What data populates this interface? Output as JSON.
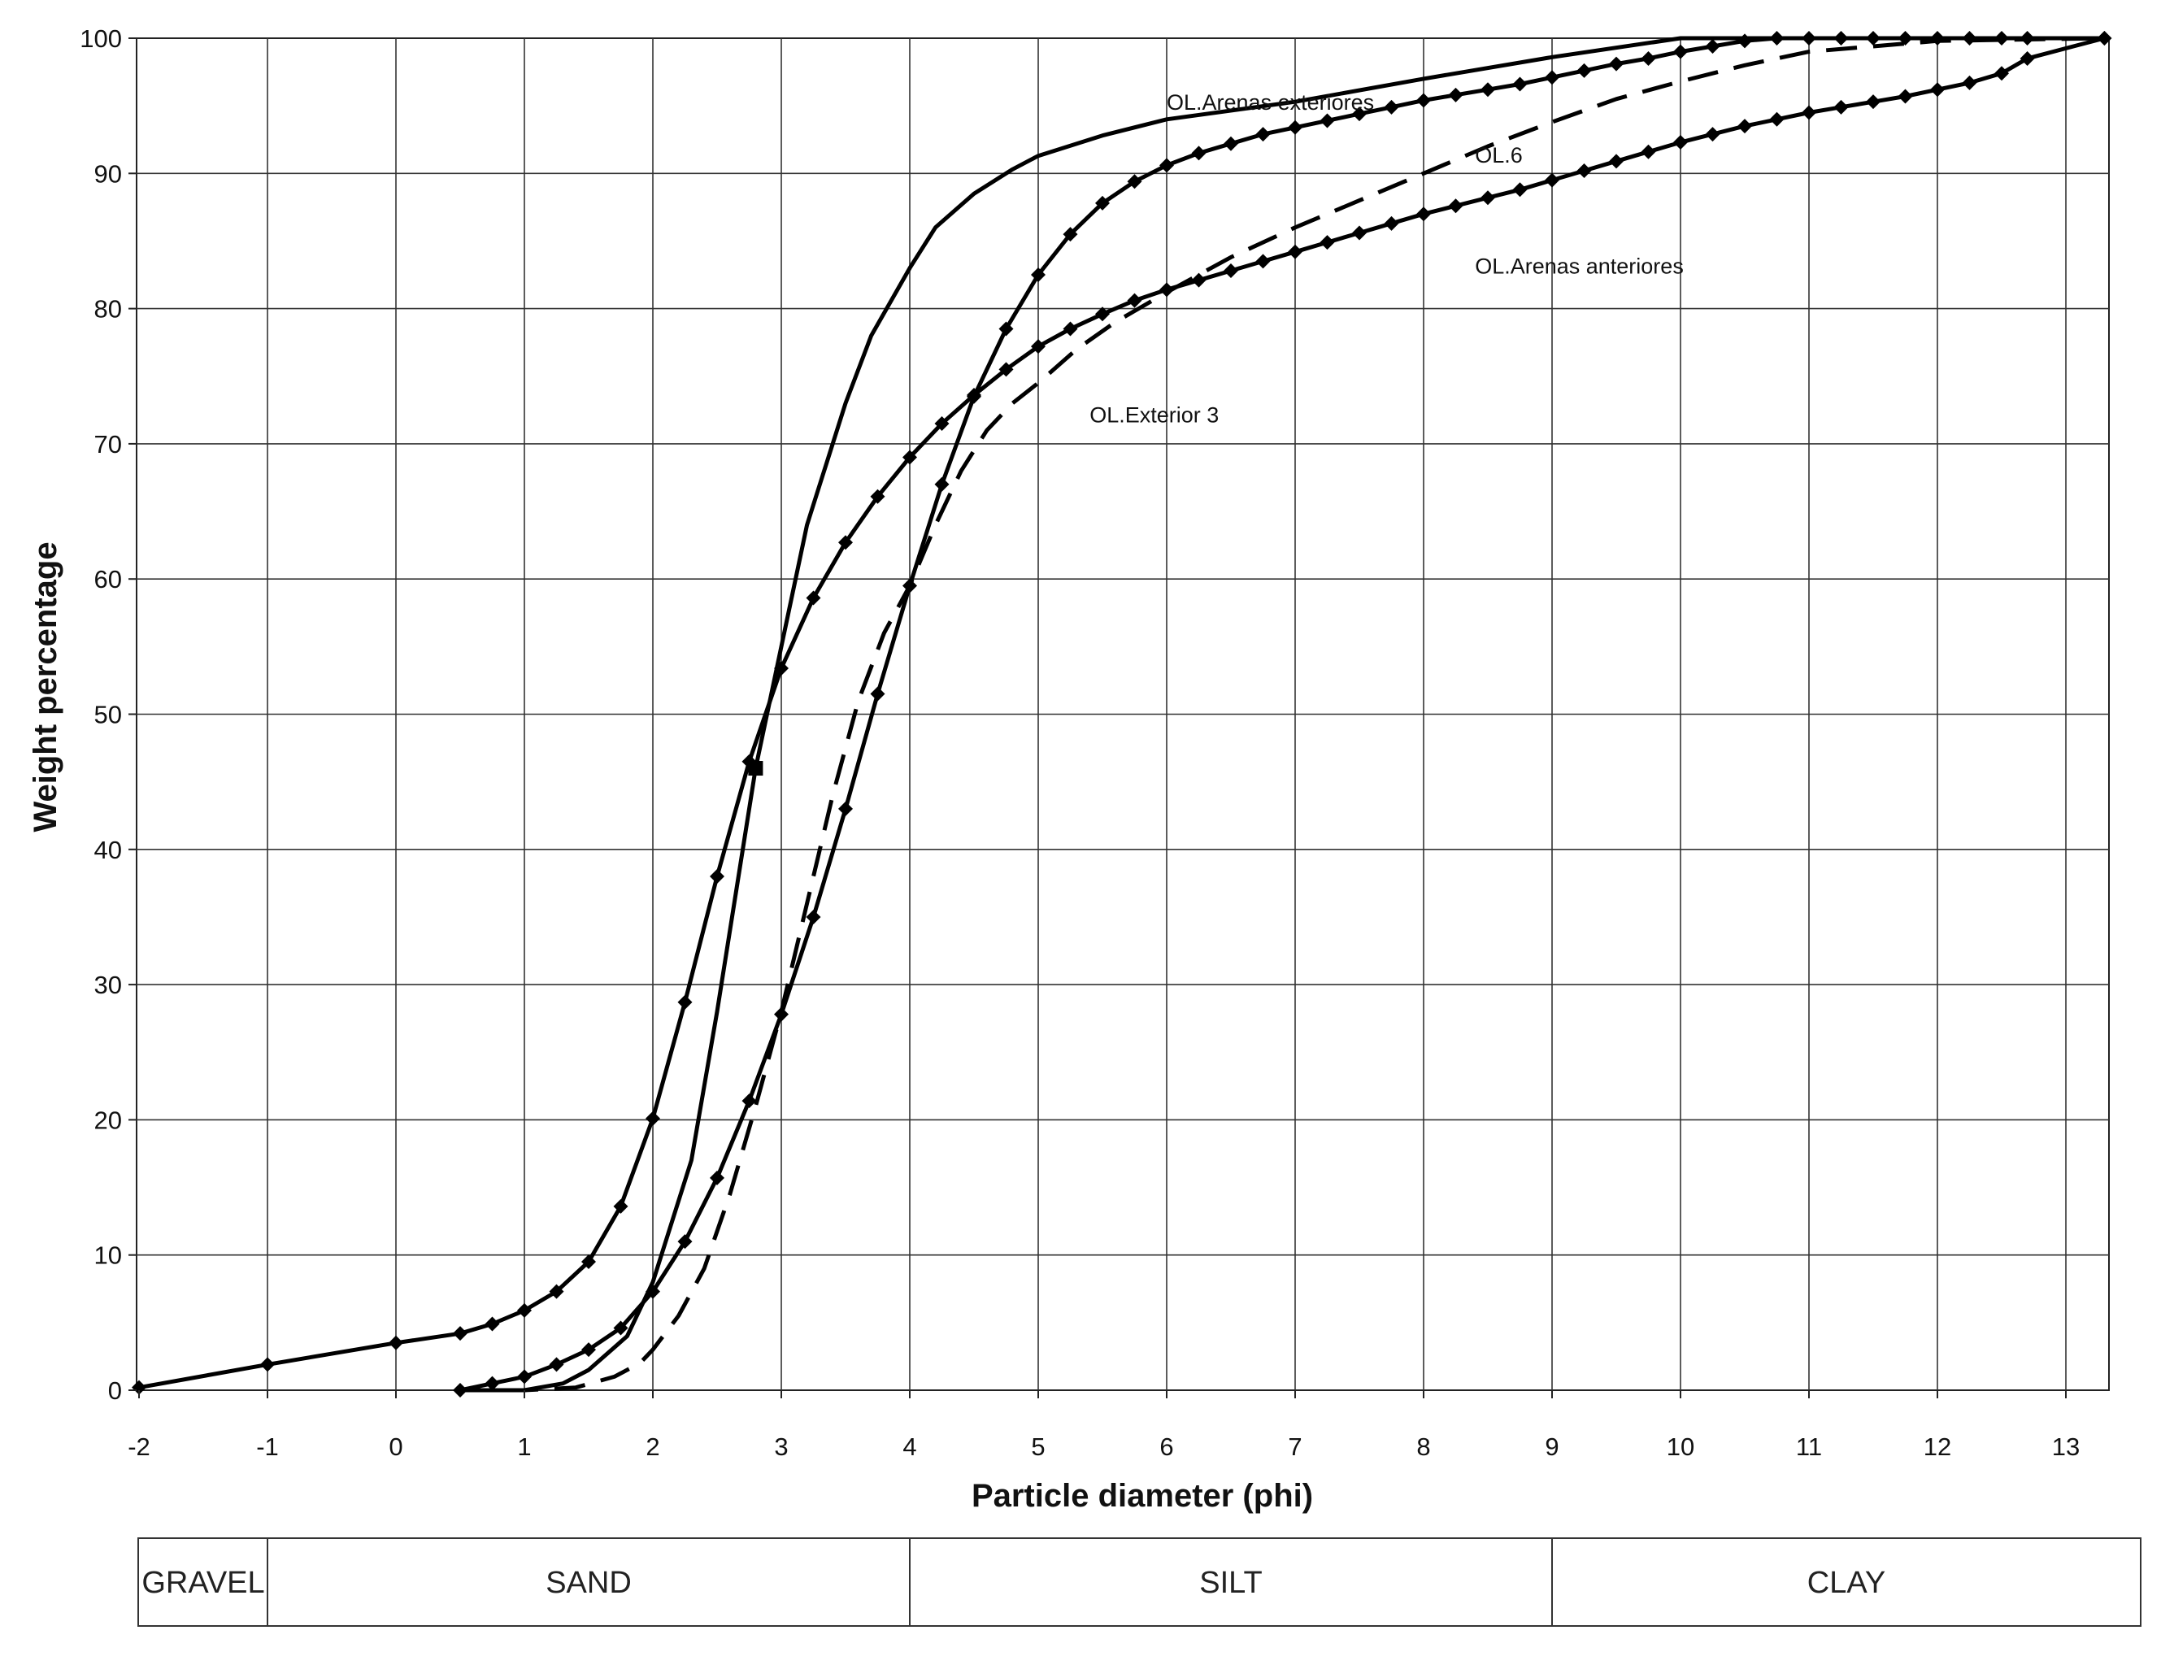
{
  "chart_data": {
    "type": "line",
    "title": "",
    "xlabel": "Particle diameter (phi)",
    "ylabel": "Weight percentage",
    "xlim": [
      -2,
      13.3
    ],
    "ylim": [
      0,
      100
    ],
    "x_ticks": [
      "-2",
      "-1",
      "0",
      "1",
      "2",
      "3",
      "4",
      "5",
      "6",
      "7",
      "8",
      "9",
      "10",
      "11",
      "12",
      "13"
    ],
    "y_ticks": [
      "0",
      "10",
      "20",
      "30",
      "40",
      "50",
      "60",
      "70",
      "80",
      "90",
      "100"
    ],
    "grid": true,
    "series": [
      {
        "name": "OL.Arenas exteriores",
        "style": "solid",
        "markers": false,
        "points": [
          [
            0.5,
            0
          ],
          [
            1,
            0
          ],
          [
            1.3,
            0.5
          ],
          [
            1.5,
            1.5
          ],
          [
            1.8,
            4
          ],
          [
            2,
            8
          ],
          [
            2.3,
            17
          ],
          [
            2.5,
            28
          ],
          [
            2.7,
            40
          ],
          [
            2.8,
            46
          ],
          [
            3,
            55
          ],
          [
            3.2,
            64
          ],
          [
            3.5,
            73
          ],
          [
            3.7,
            78
          ],
          [
            4,
            83
          ],
          [
            4.2,
            86
          ],
          [
            4.5,
            88.5
          ],
          [
            4.8,
            90.3
          ],
          [
            5,
            91.3
          ],
          [
            5.5,
            92.8
          ],
          [
            6,
            94
          ],
          [
            7,
            95.3
          ],
          [
            8,
            97
          ],
          [
            9,
            98.6
          ],
          [
            10,
            100
          ],
          [
            13.3,
            100
          ]
        ]
      },
      {
        "name": "OL.6",
        "style": "solid",
        "markers": true,
        "points": [
          [
            0.5,
            0
          ],
          [
            0.75,
            0.5
          ],
          [
            1,
            1
          ],
          [
            1.25,
            1.9
          ],
          [
            1.5,
            3
          ],
          [
            1.75,
            4.6
          ],
          [
            2,
            7.3
          ],
          [
            2.25,
            11
          ],
          [
            2.5,
            15.7
          ],
          [
            2.75,
            21.4
          ],
          [
            3,
            27.8
          ],
          [
            3.25,
            35
          ],
          [
            3.5,
            43
          ],
          [
            3.75,
            51.5
          ],
          [
            4,
            59.5
          ],
          [
            4.25,
            67
          ],
          [
            4.5,
            73.5
          ],
          [
            4.75,
            78.5
          ],
          [
            5,
            82.5
          ],
          [
            5.25,
            85.5
          ],
          [
            5.5,
            87.8
          ],
          [
            5.75,
            89.4
          ],
          [
            6,
            90.6
          ],
          [
            6.25,
            91.5
          ],
          [
            6.5,
            92.2
          ],
          [
            6.75,
            92.9
          ],
          [
            7,
            93.4
          ],
          [
            7.25,
            93.9
          ],
          [
            7.5,
            94.4
          ],
          [
            7.75,
            94.9
          ],
          [
            8,
            95.4
          ],
          [
            8.25,
            95.8
          ],
          [
            8.5,
            96.2
          ],
          [
            8.75,
            96.6
          ],
          [
            9,
            97.1
          ],
          [
            9.25,
            97.6
          ],
          [
            9.5,
            98.1
          ],
          [
            9.75,
            98.5
          ],
          [
            10,
            99
          ],
          [
            10.25,
            99.4
          ],
          [
            10.5,
            99.8
          ],
          [
            10.75,
            100
          ],
          [
            11,
            100
          ],
          [
            11.25,
            100
          ],
          [
            11.5,
            100
          ],
          [
            11.75,
            100
          ],
          [
            12,
            100
          ],
          [
            12.25,
            100
          ],
          [
            12.5,
            100
          ],
          [
            12.7,
            100
          ],
          [
            13.3,
            100
          ]
        ]
      },
      {
        "name": "OL.Arenas anteriores",
        "style": "solid",
        "markers": true,
        "points": [
          [
            -2,
            0.2
          ],
          [
            -1,
            1.9
          ],
          [
            0,
            3.5
          ],
          [
            0.5,
            4.2
          ],
          [
            0.75,
            4.9
          ],
          [
            1,
            5.9
          ],
          [
            1.25,
            7.3
          ],
          [
            1.5,
            9.5
          ],
          [
            1.75,
            13.6
          ],
          [
            2,
            20.1
          ],
          [
            2.25,
            28.7
          ],
          [
            2.5,
            38
          ],
          [
            2.75,
            46.5
          ],
          [
            3,
            53.4
          ],
          [
            3.25,
            58.6
          ],
          [
            3.5,
            62.7
          ],
          [
            3.75,
            66.1
          ],
          [
            4,
            69
          ],
          [
            4.25,
            71.5
          ],
          [
            4.5,
            73.6
          ],
          [
            4.75,
            75.5
          ],
          [
            5,
            77.2
          ],
          [
            5.25,
            78.5
          ],
          [
            5.5,
            79.6
          ],
          [
            5.75,
            80.6
          ],
          [
            6,
            81.4
          ],
          [
            6.25,
            82.1
          ],
          [
            6.5,
            82.8
          ],
          [
            6.75,
            83.5
          ],
          [
            7,
            84.2
          ],
          [
            7.25,
            84.9
          ],
          [
            7.5,
            85.6
          ],
          [
            7.75,
            86.3
          ],
          [
            8,
            87
          ],
          [
            8.25,
            87.6
          ],
          [
            8.5,
            88.2
          ],
          [
            8.75,
            88.8
          ],
          [
            9,
            89.5
          ],
          [
            9.25,
            90.2
          ],
          [
            9.5,
            90.9
          ],
          [
            9.75,
            91.6
          ],
          [
            10,
            92.3
          ],
          [
            10.25,
            92.9
          ],
          [
            10.5,
            93.5
          ],
          [
            10.75,
            94
          ],
          [
            11,
            94.5
          ],
          [
            11.25,
            94.9
          ],
          [
            11.5,
            95.3
          ],
          [
            11.75,
            95.7
          ],
          [
            12,
            96.2
          ],
          [
            12.25,
            96.7
          ],
          [
            12.5,
            97.4
          ],
          [
            12.7,
            98.5
          ],
          [
            13.3,
            100
          ]
        ]
      },
      {
        "name": "OL.Exterior 3",
        "style": "dashed",
        "markers": false,
        "points": [
          [
            0.5,
            0
          ],
          [
            1,
            0
          ],
          [
            1.4,
            0.2
          ],
          [
            1.7,
            1
          ],
          [
            1.9,
            2
          ],
          [
            2,
            3
          ],
          [
            2.2,
            5.5
          ],
          [
            2.4,
            9
          ],
          [
            2.6,
            14.5
          ],
          [
            2.8,
            21
          ],
          [
            3,
            28
          ],
          [
            3.2,
            36
          ],
          [
            3.4,
            44
          ],
          [
            3.6,
            51
          ],
          [
            3.8,
            56
          ],
          [
            4,
            59.5
          ],
          [
            4.2,
            64
          ],
          [
            4.4,
            68
          ],
          [
            4.6,
            71
          ],
          [
            4.8,
            73
          ],
          [
            5,
            74.5
          ],
          [
            5.3,
            77
          ],
          [
            5.6,
            79
          ],
          [
            6,
            81.2
          ],
          [
            6.5,
            83.8
          ],
          [
            7,
            86
          ],
          [
            7.5,
            88
          ],
          [
            8,
            90
          ],
          [
            8.5,
            92
          ],
          [
            9,
            93.8
          ],
          [
            9.5,
            95.5
          ],
          [
            10,
            96.8
          ],
          [
            10.5,
            98
          ],
          [
            11,
            99
          ],
          [
            12,
            99.8
          ],
          [
            13.3,
            100
          ]
        ]
      }
    ],
    "annotations": [
      {
        "text": "OL.Arenas exteriores",
        "x": 6,
        "y": 94.7
      },
      {
        "text": "OL.6",
        "x": 8.4,
        "y": 90.8
      },
      {
        "text": "OL.Arenas anteriores",
        "x": 8.4,
        "y": 82.6
      },
      {
        "text": "OL.Exterior 3",
        "x": 5.4,
        "y": 71.6
      }
    ],
    "grain_size_scale": [
      {
        "label": "GRAVEL",
        "from": -2,
        "to": -1
      },
      {
        "label": "SAND",
        "from": -1,
        "to": 4
      },
      {
        "label": "SILT",
        "from": 4,
        "to": 9
      },
      {
        "label": "CLAY",
        "from": 9,
        "to": 13.5
      }
    ]
  }
}
